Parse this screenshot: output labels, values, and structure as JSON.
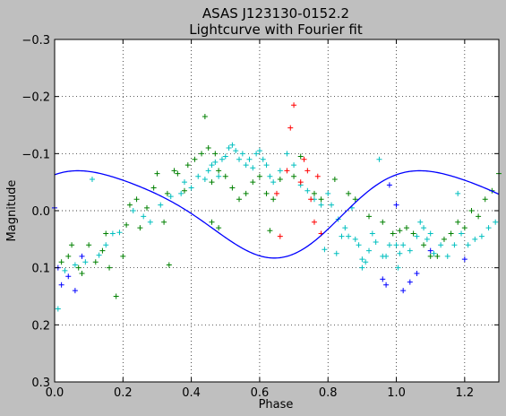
{
  "chart_data": {
    "type": "scatter",
    "title": "ASAS J123130-0152.2",
    "subtitle": "Lightcurve with Fourier fit",
    "xlabel": "Phase",
    "ylabel": "Magnitude",
    "xlim": [
      0.0,
      1.3
    ],
    "ylim": [
      -0.3,
      0.3
    ],
    "y_inverted": true,
    "grid": true,
    "marker": "+",
    "x_ticks": [
      0.0,
      0.2,
      0.4,
      0.6,
      0.8,
      1.0,
      1.2
    ],
    "x_tick_labels": [
      "0.0",
      "0.2",
      "0.4",
      "0.6",
      "0.8",
      "1.0",
      "1.2"
    ],
    "y_ticks": [
      -0.3,
      -0.2,
      -0.1,
      0.0,
      0.1,
      0.2,
      0.3
    ],
    "y_tick_labels": [
      "−0.3",
      "−0.2",
      "−0.1",
      "0.0",
      "0.1",
      "0.2",
      "0.3"
    ],
    "fourier_fit": {
      "color": "#0000ff",
      "mean": 0.0,
      "terms": [
        {
          "harmonic": 1,
          "a": -0.055,
          "b": -0.05
        },
        {
          "harmonic": 2,
          "a": -0.008,
          "b": 0.008
        }
      ]
    },
    "series": [
      {
        "color": "#00bfbf",
        "points": [
          [
            0.01,
            0.172
          ],
          [
            0.03,
            0.105
          ],
          [
            0.06,
            0.095
          ],
          [
            0.09,
            0.09
          ],
          [
            0.11,
            -0.055
          ],
          [
            0.13,
            0.078
          ],
          [
            0.15,
            0.06
          ],
          [
            0.17,
            0.04
          ],
          [
            0.19,
            0.038
          ],
          [
            0.23,
            0.0
          ],
          [
            0.26,
            0.01
          ],
          [
            0.28,
            0.02
          ],
          [
            0.31,
            -0.01
          ],
          [
            0.34,
            -0.025
          ],
          [
            0.37,
            -0.03
          ],
          [
            0.38,
            -0.05
          ],
          [
            0.4,
            -0.04
          ],
          [
            0.42,
            -0.06
          ],
          [
            0.44,
            -0.055
          ],
          [
            0.45,
            -0.07
          ],
          [
            0.46,
            -0.08
          ],
          [
            0.47,
            -0.085
          ],
          [
            0.48,
            -0.06
          ],
          [
            0.49,
            -0.09
          ],
          [
            0.5,
            -0.095
          ],
          [
            0.51,
            -0.11
          ],
          [
            0.52,
            -0.115
          ],
          [
            0.53,
            -0.105
          ],
          [
            0.54,
            -0.09
          ],
          [
            0.55,
            -0.1
          ],
          [
            0.56,
            -0.08
          ],
          [
            0.57,
            -0.09
          ],
          [
            0.58,
            -0.075
          ],
          [
            0.59,
            -0.1
          ],
          [
            0.6,
            -0.105
          ],
          [
            0.61,
            -0.09
          ],
          [
            0.62,
            -0.08
          ],
          [
            0.63,
            -0.06
          ],
          [
            0.64,
            -0.05
          ],
          [
            0.66,
            -0.07
          ],
          [
            0.68,
            -0.1
          ],
          [
            0.7,
            -0.08
          ],
          [
            0.72,
            -0.045
          ],
          [
            0.74,
            -0.035
          ],
          [
            0.76,
            -0.02
          ],
          [
            0.78,
            -0.01
          ],
          [
            0.8,
            -0.03
          ],
          [
            0.81,
            -0.01
          ],
          [
            0.83,
            0.015
          ],
          [
            0.84,
            0.045
          ],
          [
            0.85,
            0.03
          ],
          [
            0.87,
            -0.005
          ],
          [
            0.88,
            0.05
          ],
          [
            0.89,
            0.06
          ],
          [
            0.9,
            0.085
          ],
          [
            0.91,
            0.09
          ],
          [
            0.92,
            0.07
          ],
          [
            0.93,
            0.04
          ],
          [
            0.94,
            0.055
          ],
          [
            0.95,
            -0.09
          ],
          [
            0.96,
            0.08
          ],
          [
            0.97,
            0.08
          ],
          [
            0.98,
            0.06
          ],
          [
            1.0,
            0.06
          ],
          [
            1.01,
            0.075
          ],
          [
            1.02,
            0.06
          ],
          [
            1.04,
            0.07
          ],
          [
            1.06,
            0.045
          ],
          [
            1.07,
            0.02
          ],
          [
            1.08,
            0.03
          ],
          [
            1.09,
            0.05
          ],
          [
            1.1,
            0.04
          ],
          [
            1.11,
            0.075
          ],
          [
            1.13,
            0.06
          ],
          [
            1.15,
            0.08
          ],
          [
            1.17,
            0.06
          ],
          [
            1.18,
            -0.03
          ],
          [
            1.19,
            0.04
          ],
          [
            1.21,
            0.06
          ],
          [
            1.23,
            0.05
          ],
          [
            1.25,
            0.045
          ],
          [
            1.27,
            0.03
          ],
          [
            1.29,
            0.02
          ],
          [
            0.79,
            0.068
          ],
          [
            0.86,
            0.045
          ],
          [
            0.9,
            0.1
          ],
          [
            1.005,
            0.1
          ],
          [
            0.825,
            0.075
          ]
        ]
      },
      {
        "color": "#008000",
        "points": [
          [
            0.02,
            0.09
          ],
          [
            0.04,
            0.08
          ],
          [
            0.05,
            0.06
          ],
          [
            0.07,
            0.1
          ],
          [
            0.08,
            0.11
          ],
          [
            0.1,
            0.06
          ],
          [
            0.12,
            0.09
          ],
          [
            0.14,
            0.07
          ],
          [
            0.16,
            0.1
          ],
          [
            0.18,
            0.15
          ],
          [
            0.2,
            0.08
          ],
          [
            0.22,
            -0.01
          ],
          [
            0.24,
            -0.02
          ],
          [
            0.25,
            0.03
          ],
          [
            0.27,
            -0.005
          ],
          [
            0.29,
            -0.04
          ],
          [
            0.3,
            -0.065
          ],
          [
            0.32,
            0.02
          ],
          [
            0.33,
            -0.03
          ],
          [
            0.35,
            -0.07
          ],
          [
            0.36,
            -0.065
          ],
          [
            0.38,
            -0.035
          ],
          [
            0.39,
            -0.08
          ],
          [
            0.41,
            -0.09
          ],
          [
            0.43,
            -0.1
          ],
          [
            0.44,
            -0.165
          ],
          [
            0.45,
            -0.11
          ],
          [
            0.46,
            -0.05
          ],
          [
            0.47,
            -0.1
          ],
          [
            0.48,
            -0.07
          ],
          [
            0.5,
            -0.06
          ],
          [
            0.52,
            -0.04
          ],
          [
            0.54,
            -0.02
          ],
          [
            0.56,
            -0.03
          ],
          [
            0.58,
            -0.05
          ],
          [
            0.6,
            -0.06
          ],
          [
            0.62,
            -0.03
          ],
          [
            0.64,
            -0.02
          ],
          [
            0.66,
            -0.055
          ],
          [
            0.7,
            -0.06
          ],
          [
            0.72,
            -0.095
          ],
          [
            0.76,
            -0.03
          ],
          [
            0.78,
            -0.02
          ],
          [
            0.82,
            -0.055
          ],
          [
            0.86,
            -0.03
          ],
          [
            0.88,
            -0.02
          ],
          [
            0.92,
            0.01
          ],
          [
            0.96,
            0.02
          ],
          [
            0.99,
            0.04
          ],
          [
            1.01,
            0.035
          ],
          [
            1.03,
            0.03
          ],
          [
            1.05,
            0.04
          ],
          [
            1.08,
            0.06
          ],
          [
            1.1,
            0.08
          ],
          [
            1.12,
            0.08
          ],
          [
            1.14,
            0.05
          ],
          [
            1.16,
            0.04
          ],
          [
            1.18,
            0.02
          ],
          [
            1.2,
            0.03
          ],
          [
            1.22,
            0.0
          ],
          [
            1.24,
            0.01
          ],
          [
            1.26,
            -0.02
          ],
          [
            1.28,
            -0.035
          ],
          [
            1.3,
            -0.065
          ],
          [
            0.63,
            0.035
          ],
          [
            0.48,
            0.03
          ],
          [
            0.335,
            0.095
          ],
          [
            0.46,
            0.02
          ],
          [
            0.15,
            0.04
          ],
          [
            0.21,
            0.025
          ]
        ]
      },
      {
        "color": "#ff0000",
        "points": [
          [
            0.65,
            -0.03
          ],
          [
            0.66,
            0.045
          ],
          [
            0.68,
            -0.07
          ],
          [
            0.69,
            -0.145
          ],
          [
            0.7,
            -0.185
          ],
          [
            0.72,
            -0.05
          ],
          [
            0.73,
            -0.09
          ],
          [
            0.74,
            -0.07
          ],
          [
            0.75,
            -0.02
          ],
          [
            0.76,
            0.02
          ],
          [
            0.77,
            -0.06
          ],
          [
            0.78,
            0.04
          ]
        ]
      },
      {
        "color": "#0000ff",
        "points": [
          [
            0.0,
            -0.005
          ],
          [
            0.01,
            0.1
          ],
          [
            0.02,
            0.13
          ],
          [
            0.04,
            0.115
          ],
          [
            0.06,
            0.14
          ],
          [
            0.08,
            0.08
          ],
          [
            0.96,
            0.12
          ],
          [
            0.98,
            -0.045
          ],
          [
            1.0,
            -0.01
          ],
          [
            1.02,
            0.14
          ],
          [
            1.04,
            0.125
          ],
          [
            1.06,
            0.11
          ],
          [
            1.1,
            0.07
          ],
          [
            1.2,
            0.085
          ],
          [
            0.97,
            0.13
          ]
        ]
      }
    ]
  }
}
